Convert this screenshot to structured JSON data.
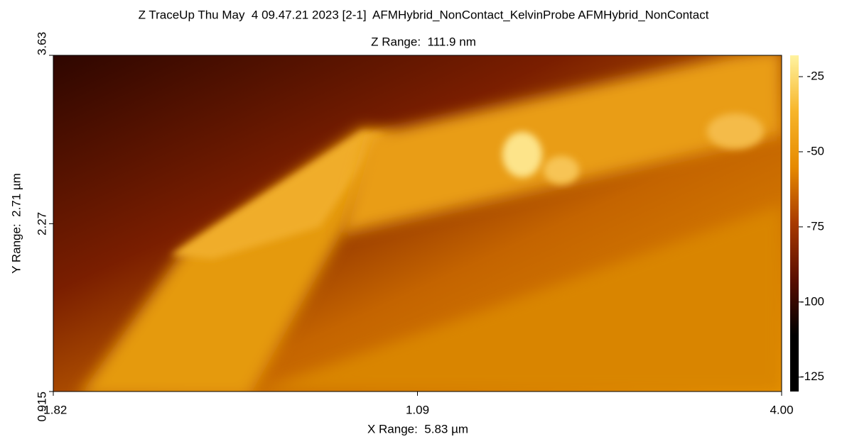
{
  "chart_data": {
    "type": "heatmap",
    "title": "Z TraceUp Thu May  4 09.47.21 2023 [2-1]  AFMHybrid_NonContact_KelvinProbe AFMHybrid_NonContact",
    "subtitle": "Z Range:  111.9 nm",
    "x_label": "X Range:  5.83 µm",
    "y_label": "Y Range:  2.71 µm",
    "xlim": [
      -1.82,
      4.0
    ],
    "xticks": [
      -1.82,
      1.09,
      {
        "value": 4.0,
        "label": "4.00"
      }
    ],
    "ylim": [
      0.915,
      3.63
    ],
    "yticks": [
      0.915,
      2.27,
      3.63
    ],
    "clim": [
      -129.8,
      -17.9
    ],
    "cticks": [
      -125,
      -100,
      -75,
      -50,
      -25
    ],
    "colormap": [
      "#000000",
      "#000000",
      "#5a0e00",
      "#a83a00",
      "#e68a00",
      "#f7b52a",
      "#fff3a0"
    ]
  }
}
